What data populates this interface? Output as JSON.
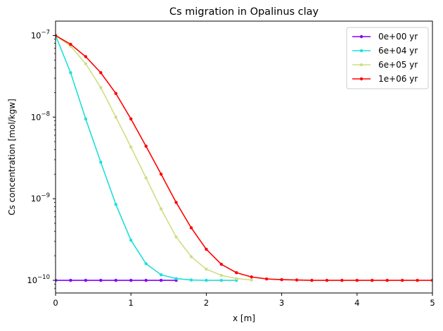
{
  "chart_data": {
    "type": "line",
    "title": "Cs migration in Opalinus clay",
    "xlabel": "x [m]",
    "ylabel": "Cs concentration [mol/kgw]",
    "xlim": [
      0,
      5
    ],
    "ylim": [
      7e-11,
      1.5e-07
    ],
    "yscale": "log",
    "grid": false,
    "legend_position": "top-right",
    "x_ticks": [
      0,
      1,
      2,
      3,
      4,
      5
    ],
    "y_ticks": [
      {
        "value": 1e-10,
        "base": "10",
        "exp": "−10"
      },
      {
        "value": 1e-09,
        "base": "10",
        "exp": "−9"
      },
      {
        "value": 1e-08,
        "base": "10",
        "exp": "−8"
      },
      {
        "value": 1e-07,
        "base": "10",
        "exp": "−7"
      }
    ],
    "x": [
      0,
      0.2,
      0.4,
      0.6,
      0.8,
      1.0,
      1.2,
      1.4,
      1.6,
      1.8,
      2.0,
      2.2,
      2.4,
      2.6,
      2.8,
      3.0,
      3.2,
      3.4,
      3.6,
      3.8,
      4.0,
      4.2,
      4.4,
      4.6,
      4.8,
      5.0
    ],
    "series": [
      {
        "name": "0e+00 yr",
        "color": "#8000ff",
        "x": [
          0,
          0.2,
          0.4,
          0.6,
          0.8,
          1.0,
          1.2,
          1.4,
          1.6
        ],
        "values": [
          1e-10,
          1e-10,
          1e-10,
          1e-10,
          1e-10,
          1e-10,
          1e-10,
          1e-10,
          1e-10
        ]
      },
      {
        "name": "6e+04 yr",
        "color": "#1edfd9",
        "x": [
          0,
          0.2,
          0.4,
          0.6,
          0.8,
          1.0,
          1.2,
          1.4,
          1.6,
          1.8,
          2.0,
          2.2,
          2.4
        ],
        "values": [
          1e-07,
          3.5e-08,
          9.5e-09,
          2.8e-09,
          8.5e-10,
          3.1e-10,
          1.6e-10,
          1.17e-10,
          1.05e-10,
          1.01e-10,
          1e-10,
          1e-10,
          1e-10
        ]
      },
      {
        "name": "6e+05 yr",
        "color": "#d1dd84",
        "x": [
          0,
          0.2,
          0.4,
          0.6,
          0.8,
          1.0,
          1.2,
          1.4,
          1.6,
          1.8,
          2.0,
          2.2,
          2.4,
          2.6
        ],
        "values": [
          1e-07,
          7.4e-08,
          4.5e-08,
          2.3e-08,
          1e-08,
          4.3e-09,
          1.8e-09,
          7.5e-10,
          3.4e-10,
          1.95e-10,
          1.37e-10,
          1.15e-10,
          1.05e-10,
          1.01e-10
        ]
      },
      {
        "name": "1e+06 yr",
        "color": "#ff0000",
        "x": [
          0,
          0.2,
          0.4,
          0.6,
          0.8,
          1.0,
          1.2,
          1.4,
          1.6,
          1.8,
          2.0,
          2.2,
          2.4,
          2.6,
          2.8,
          3.0,
          3.2,
          3.4,
          3.6,
          3.8,
          4.0,
          4.2,
          4.4,
          4.6,
          4.8,
          5.0
        ],
        "values": [
          1e-07,
          7.8e-08,
          5.5e-08,
          3.5e-08,
          1.95e-08,
          9.5e-09,
          4.4e-09,
          2e-09,
          9e-10,
          4.4e-10,
          2.4e-10,
          1.57e-10,
          1.24e-10,
          1.1e-10,
          1.04e-10,
          1.02e-10,
          1.01e-10,
          1e-10,
          1e-10,
          1e-10,
          1e-10,
          1e-10,
          1e-10,
          1e-10,
          1e-10,
          1e-10
        ]
      }
    ]
  }
}
